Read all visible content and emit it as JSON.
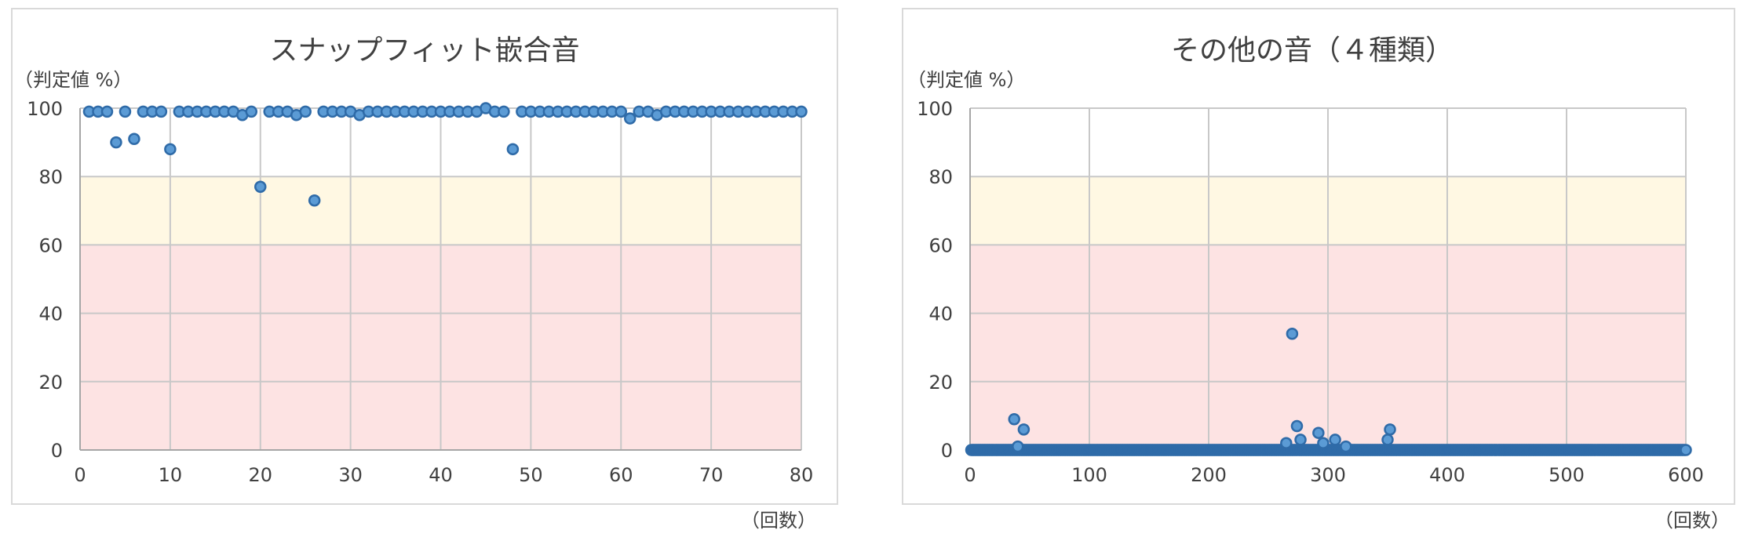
{
  "colors": {
    "marker_fill": "#5B9BD5",
    "marker_stroke": "#2F6BA8",
    "band_yellow": "#FFF8E3",
    "band_red": "#FDE3E3",
    "grid": "#C8C8C8",
    "frame": "#D9D9D9"
  },
  "chart_data": [
    {
      "type": "scatter",
      "title": "スナップフィット嵌合音",
      "ylabel": "（判定値 %）",
      "xlabel": "（回数）",
      "xlim": [
        0,
        80
      ],
      "ylim": [
        0,
        100
      ],
      "xticks": [
        "0",
        "10",
        "20",
        "30",
        "40",
        "50",
        "60",
        "70",
        "80"
      ],
      "yticks": [
        "0",
        "20",
        "40",
        "60",
        "80",
        "100"
      ],
      "grid": true,
      "bands": [
        {
          "from": 0,
          "to": 60,
          "color": "#FDE3E3"
        },
        {
          "from": 60,
          "to": 80,
          "color": "#FFF8E3"
        }
      ],
      "series": [
        {
          "x": [
            1,
            2,
            3,
            4,
            5,
            6,
            7,
            8,
            9,
            10,
            11,
            12,
            13,
            14,
            15,
            16,
            17,
            18,
            19,
            20,
            21,
            22,
            23,
            24,
            25,
            26,
            27,
            28,
            29,
            30,
            31,
            32,
            33,
            34,
            35,
            36,
            37,
            38,
            39,
            40,
            41,
            42,
            43,
            44,
            45,
            46,
            47,
            48,
            49,
            50,
            51,
            52,
            53,
            54,
            55,
            56,
            57,
            58,
            59,
            60,
            61,
            62,
            63,
            64,
            65,
            66,
            67,
            68,
            69,
            70,
            71,
            72,
            73,
            74,
            75,
            76,
            77,
            78,
            79,
            80
          ],
          "y": [
            99,
            99,
            99,
            90,
            99,
            91,
            99,
            99,
            99,
            88,
            99,
            99,
            99,
            99,
            99,
            99,
            99,
            98,
            99,
            77,
            99,
            99,
            99,
            98,
            99,
            73,
            99,
            99,
            99,
            99,
            98,
            99,
            99,
            99,
            99,
            99,
            99,
            99,
            99,
            99,
            99,
            99,
            99,
            99,
            100,
            99,
            99,
            88,
            99,
            99,
            99,
            99,
            99,
            99,
            99,
            99,
            99,
            99,
            99,
            99,
            97,
            99,
            99,
            98,
            99,
            99,
            99,
            99,
            99,
            99,
            99,
            99,
            99,
            99,
            99,
            99,
            99,
            99,
            99,
            99
          ]
        }
      ]
    },
    {
      "type": "scatter",
      "title": "その他の音（４種類）",
      "ylabel": "（判定値 %）",
      "xlabel": "（回数）",
      "xlim": [
        0,
        600
      ],
      "ylim": [
        0,
        100
      ],
      "xticks": [
        "0",
        "100",
        "200",
        "300",
        "400",
        "500",
        "600"
      ],
      "yticks": [
        "0",
        "20",
        "40",
        "60",
        "80",
        "100"
      ],
      "grid": true,
      "bands": [
        {
          "from": 0,
          "to": 60,
          "color": "#FDE3E3"
        },
        {
          "from": 60,
          "to": 80,
          "color": "#FFF8E3"
        }
      ],
      "series": [
        {
          "baseline": {
            "x_from": 1,
            "x_to": 600,
            "step": 1,
            "y": 0
          },
          "x": [
            37,
            40,
            45,
            265,
            270,
            274,
            277,
            292,
            296,
            306,
            315,
            350,
            352
          ],
          "y": [
            9,
            1,
            6,
            2,
            34,
            7,
            3,
            5,
            2,
            3,
            1,
            3,
            6
          ]
        }
      ]
    }
  ]
}
